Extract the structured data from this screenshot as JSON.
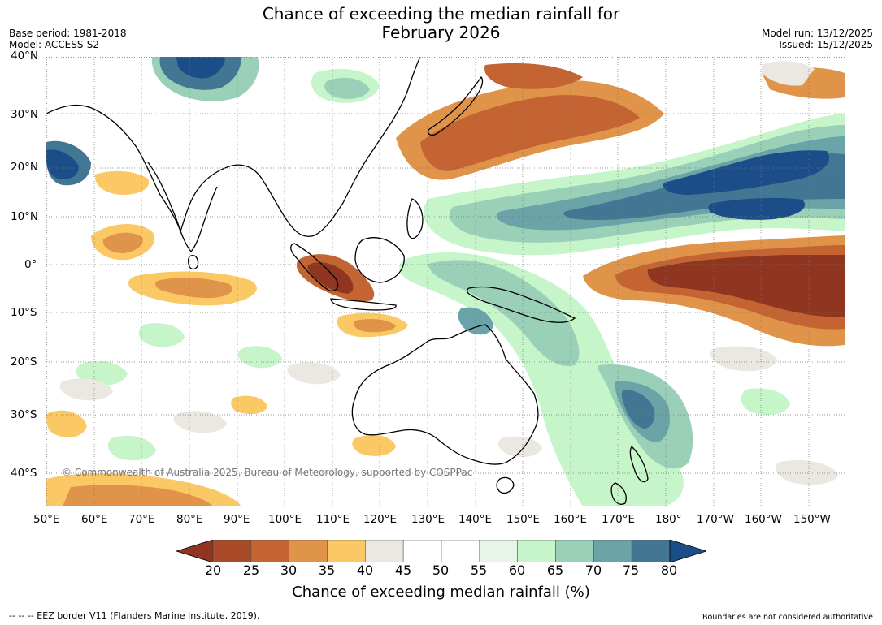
{
  "title": {
    "line1": "Chance of exceeding the median rainfall for",
    "line2": "February 2026"
  },
  "meta": {
    "base_period": "Base period: 1981-2018",
    "model": "Model: ACCESS-S2",
    "model_run": "Model run: 13/12/2025",
    "issued": "Issued: 15/12/2025"
  },
  "map": {
    "copyright": "© Commonwealth of Australia 2025, Bureau of Meteorology, supported by COSPPac",
    "lat_labels": [
      "40°N",
      "30°N",
      "20°N",
      "10°N",
      "0°",
      "10°S",
      "20°S",
      "30°S",
      "40°S"
    ],
    "lon_labels": [
      "50°E",
      "60°E",
      "70°E",
      "80°E",
      "90°E",
      "100°E",
      "110°E",
      "120°E",
      "130°E",
      "140°E",
      "150°E",
      "160°E",
      "170°E",
      "180°",
      "170°W",
      "160°W",
      "150°W"
    ]
  },
  "colorbar": {
    "ticks": [
      "20",
      "25",
      "30",
      "35",
      "40",
      "45",
      "50",
      "55",
      "60",
      "65",
      "70",
      "75",
      "80"
    ],
    "label": "Chance of exceeding median rainfall (%)",
    "colors": {
      "below_20": "#8f3520",
      "20-25": "#a94a28",
      "25-30": "#c46432",
      "30-35": "#e0944a",
      "35-40": "#fbc866",
      "40-45": "#ebe8e2",
      "45-50": "#ffffff",
      "50-55": "#ffffff",
      "55-60": "#e8f4e8",
      "60-65": "#c5f5c8",
      "65-70": "#9ad0b8",
      "70-75": "#6aa3a8",
      "75-80": "#437693",
      "above_80": "#1b4e88"
    }
  },
  "footer": {
    "eez_legend": "--  --  -- EEZ border V11 (Flanders Marine Institute, 2019).",
    "disclaimer": "Boundaries are not considered authoritative"
  }
}
